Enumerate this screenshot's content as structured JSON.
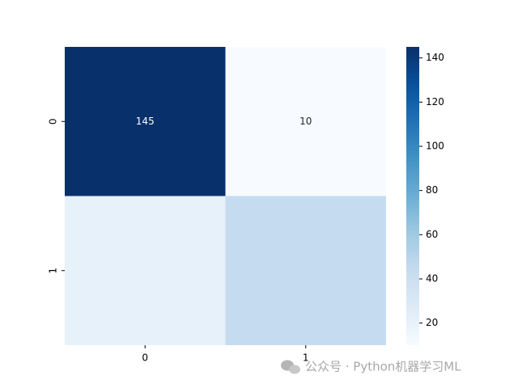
{
  "chart_data": {
    "type": "heatmap",
    "x_categories": [
      "0",
      "1"
    ],
    "y_categories": [
      "0",
      "1"
    ],
    "values": [
      [
        145,
        10
      ],
      [
        21,
        44
      ]
    ],
    "value_labels": [
      [
        "145",
        "10"
      ],
      [
        null,
        null
      ]
    ],
    "cmap": "Blues",
    "clim": [
      10,
      145
    ],
    "cticks": [
      20,
      40,
      60,
      80,
      100,
      120,
      140
    ]
  },
  "watermark": "公众号 · Python机器学习ML"
}
